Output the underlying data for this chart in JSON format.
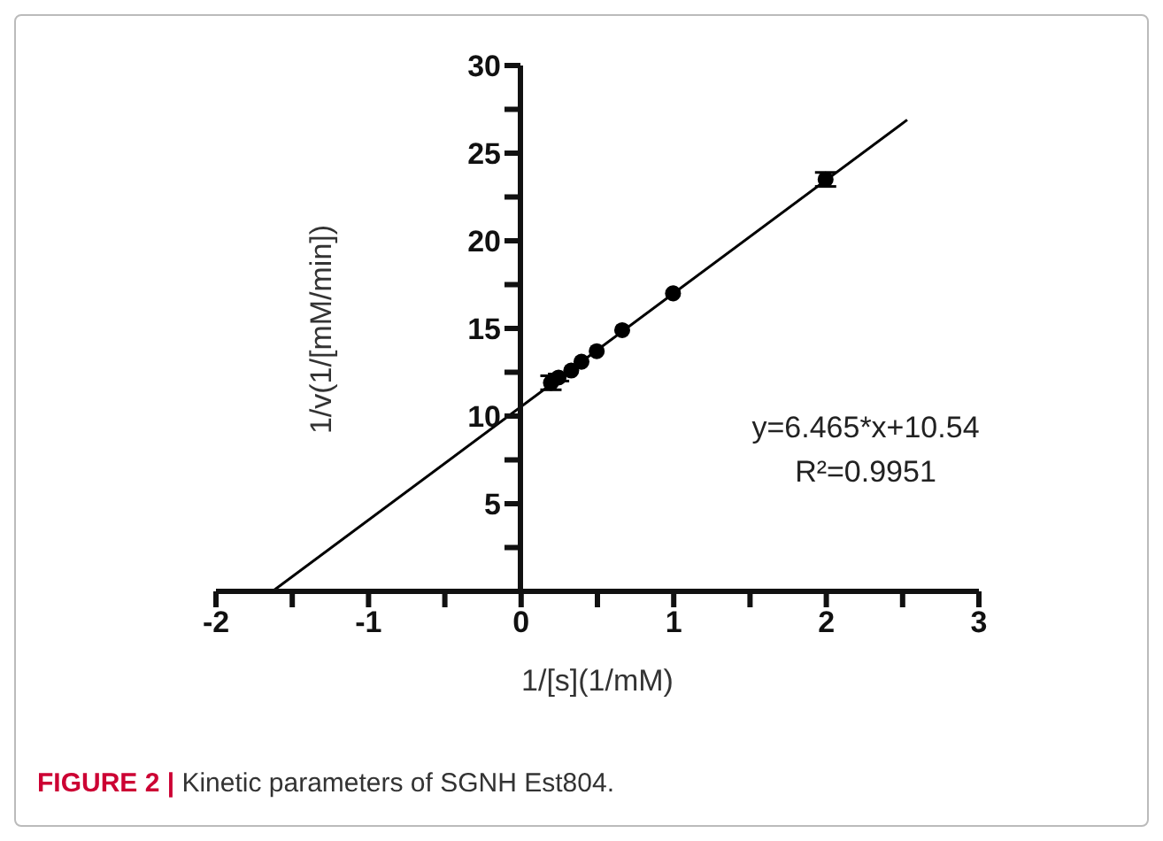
{
  "chart_data": {
    "type": "scatter",
    "xlabel": "1/[s](1/mM)",
    "ylabel": "1/v(1/[mM/min])",
    "annotations": [
      "y=6.465*x+10.54",
      "R²=0.9951",
      "FIGURE 2 | Kinetic parameters of SGNH Est804."
    ],
    "series": [
      {
        "color": "#000000",
        "x": [
          0.2,
          0.25,
          0.333,
          0.4,
          0.5,
          0.667,
          1,
          2
        ],
        "values": [
          11.9,
          12.2,
          12.6,
          13.1,
          13.7,
          14.9,
          17.0,
          23.5
        ],
        "errors": [
          0.4,
          0.2,
          null,
          null,
          null,
          null,
          null,
          0.4
        ],
        "marker": "circle"
      },
      {
        "type": "line",
        "color": "#000000",
        "x": [
          -1.63,
          2.53
        ],
        "values": [
          0,
          26.9
        ],
        "line_style": "solid"
      }
    ],
    "xlim": [
      -2,
      3
    ],
    "xticks": [
      -2,
      {
        "value": -1.5,
        "label": null
      },
      -1,
      {
        "value": -0.5,
        "label": null
      },
      0,
      {
        "value": 0.5,
        "label": null
      },
      1,
      {
        "value": 1.5,
        "label": null
      },
      2,
      {
        "value": 2.5,
        "label": null
      },
      3
    ],
    "ylim": [
      0,
      30
    ],
    "yticks": [
      {
        "value": 2.5,
        "label": null
      },
      5,
      {
        "value": 7.5,
        "label": null
      },
      10,
      {
        "value": 12.5,
        "label": null
      },
      15,
      {
        "value": 17.5,
        "label": null
      },
      20,
      {
        "value": 22.5,
        "label": null
      },
      25,
      {
        "value": 27.5,
        "label": null
      },
      30
    ],
    "grid": false,
    "legend": false
  }
}
